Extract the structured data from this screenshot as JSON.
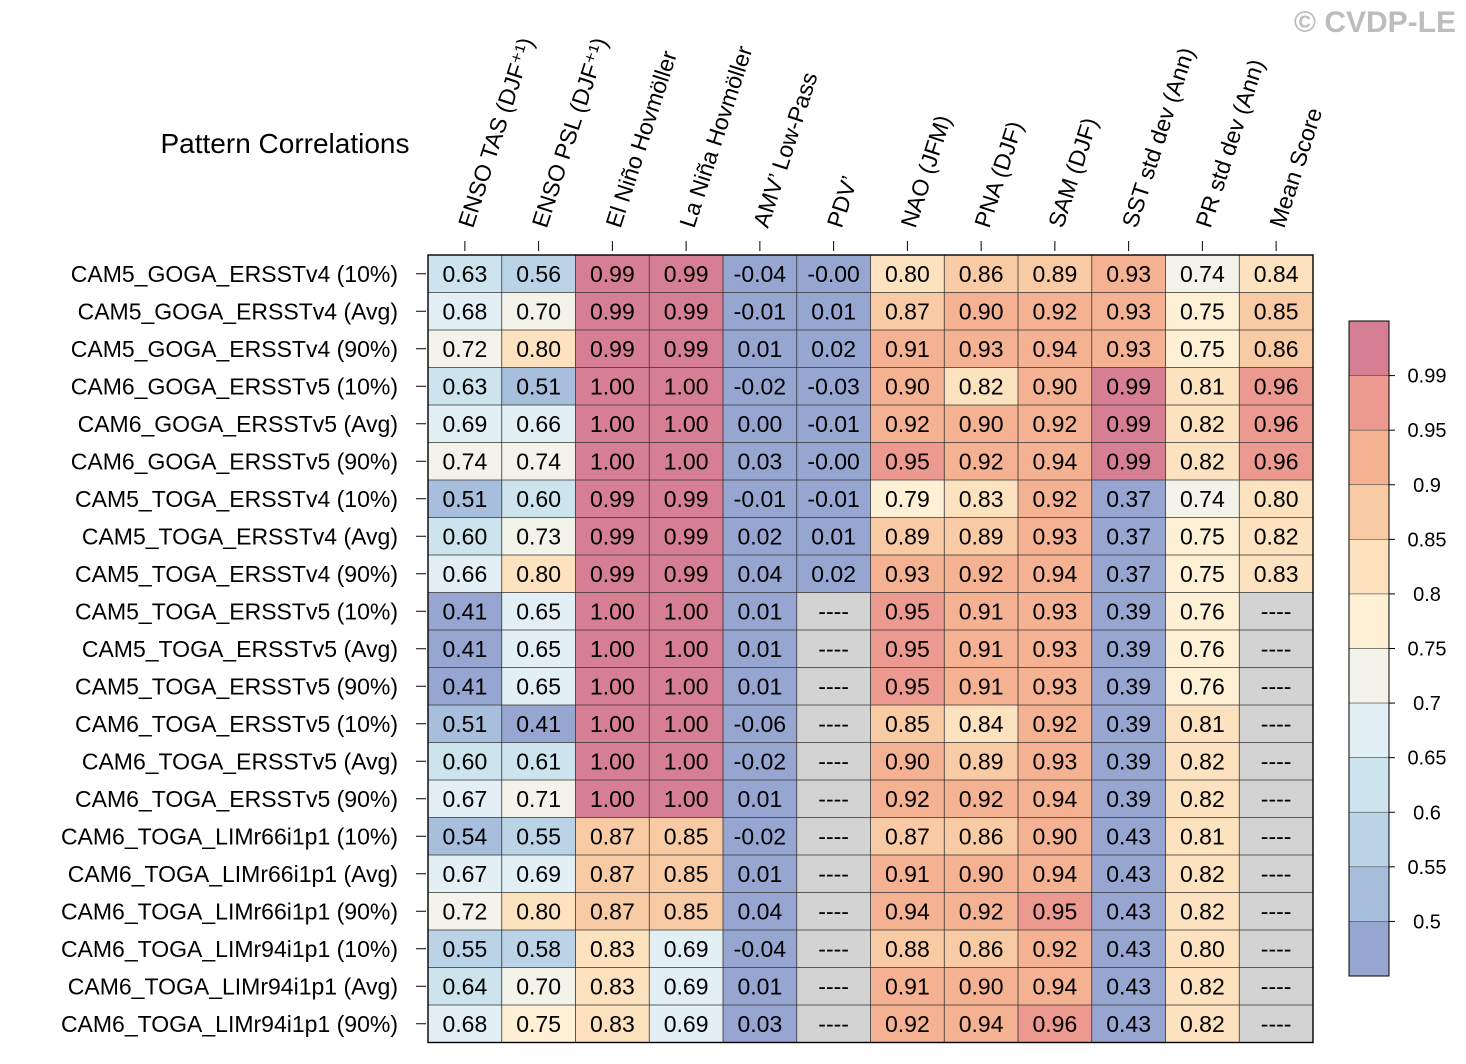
{
  "watermark": "© CVDP-LE",
  "chart_data": {
    "type": "heatmap",
    "title": "Pattern Correlations",
    "missing_label": "----",
    "columns": [
      "ENSO TAS (DJF⁺¹)",
      "ENSO PSL (DJF⁺¹)",
      "El Niño Hovmöller",
      "La Niña Hovmöller",
      "AMV’ Low-Pass",
      "PDV’",
      "NAO (JFM)",
      "PNA (DJF)",
      "SAM (DJF)",
      "SST std dev (Ann)",
      "PR std dev (Ann)",
      "Mean Score"
    ],
    "rows": [
      {
        "label": "CAM5_GOGA_ERSSTv4 (10%)",
        "values": [
          0.63,
          0.56,
          0.99,
          0.99,
          -0.04,
          -0.0,
          0.8,
          0.86,
          0.89,
          0.93,
          0.74,
          0.84
        ]
      },
      {
        "label": "CAM5_GOGA_ERSSTv4 (Avg)",
        "values": [
          0.68,
          0.7,
          0.99,
          0.99,
          -0.01,
          0.01,
          0.87,
          0.9,
          0.92,
          0.93,
          0.75,
          0.85
        ]
      },
      {
        "label": "CAM5_GOGA_ERSSTv4 (90%)",
        "values": [
          0.72,
          0.8,
          0.99,
          0.99,
          0.01,
          0.02,
          0.91,
          0.93,
          0.94,
          0.93,
          0.75,
          0.86
        ]
      },
      {
        "label": "CAM6_GOGA_ERSSTv5 (10%)",
        "values": [
          0.63,
          0.51,
          1.0,
          1.0,
          -0.02,
          -0.03,
          0.9,
          0.82,
          0.9,
          0.99,
          0.81,
          0.96
        ]
      },
      {
        "label": "CAM6_GOGA_ERSSTv5 (Avg)",
        "values": [
          0.69,
          0.66,
          1.0,
          1.0,
          0.0,
          -0.01,
          0.92,
          0.9,
          0.92,
          0.99,
          0.82,
          0.96
        ]
      },
      {
        "label": "CAM6_GOGA_ERSSTv5 (90%)",
        "values": [
          0.74,
          0.74,
          1.0,
          1.0,
          0.03,
          -0.0,
          0.95,
          0.92,
          0.94,
          0.99,
          0.82,
          0.96
        ]
      },
      {
        "label": "CAM5_TOGA_ERSSTv4 (10%)",
        "values": [
          0.51,
          0.6,
          0.99,
          0.99,
          -0.01,
          -0.01,
          0.79,
          0.83,
          0.92,
          0.37,
          0.74,
          0.8
        ]
      },
      {
        "label": "CAM5_TOGA_ERSSTv4 (Avg)",
        "values": [
          0.6,
          0.73,
          0.99,
          0.99,
          0.02,
          0.01,
          0.89,
          0.89,
          0.93,
          0.37,
          0.75,
          0.82
        ]
      },
      {
        "label": "CAM5_TOGA_ERSSTv4 (90%)",
        "values": [
          0.66,
          0.8,
          0.99,
          0.99,
          0.04,
          0.02,
          0.93,
          0.92,
          0.94,
          0.37,
          0.75,
          0.83
        ]
      },
      {
        "label": "CAM5_TOGA_ERSSTv5 (10%)",
        "values": [
          0.41,
          0.65,
          1.0,
          1.0,
          0.01,
          null,
          0.95,
          0.91,
          0.93,
          0.39,
          0.76,
          null
        ]
      },
      {
        "label": "CAM5_TOGA_ERSSTv5 (Avg)",
        "values": [
          0.41,
          0.65,
          1.0,
          1.0,
          0.01,
          null,
          0.95,
          0.91,
          0.93,
          0.39,
          0.76,
          null
        ]
      },
      {
        "label": "CAM5_TOGA_ERSSTv5 (90%)",
        "values": [
          0.41,
          0.65,
          1.0,
          1.0,
          0.01,
          null,
          0.95,
          0.91,
          0.93,
          0.39,
          0.76,
          null
        ]
      },
      {
        "label": "CAM6_TOGA_ERSSTv5 (10%)",
        "values": [
          0.51,
          0.41,
          1.0,
          1.0,
          -0.06,
          null,
          0.85,
          0.84,
          0.92,
          0.39,
          0.81,
          null
        ]
      },
      {
        "label": "CAM6_TOGA_ERSSTv5 (Avg)",
        "values": [
          0.6,
          0.61,
          1.0,
          1.0,
          -0.02,
          null,
          0.9,
          0.89,
          0.93,
          0.39,
          0.82,
          null
        ]
      },
      {
        "label": "CAM6_TOGA_ERSSTv5 (90%)",
        "values": [
          0.67,
          0.71,
          1.0,
          1.0,
          0.01,
          null,
          0.92,
          0.92,
          0.94,
          0.39,
          0.82,
          null
        ]
      },
      {
        "label": "CAM6_TOGA_LIMr66i1p1 (10%)",
        "values": [
          0.54,
          0.55,
          0.87,
          0.85,
          -0.02,
          null,
          0.87,
          0.86,
          0.9,
          0.43,
          0.81,
          null
        ]
      },
      {
        "label": "CAM6_TOGA_LIMr66i1p1 (Avg)",
        "values": [
          0.67,
          0.69,
          0.87,
          0.85,
          0.01,
          null,
          0.91,
          0.9,
          0.94,
          0.43,
          0.82,
          null
        ]
      },
      {
        "label": "CAM6_TOGA_LIMr66i1p1 (90%)",
        "values": [
          0.72,
          0.8,
          0.87,
          0.85,
          0.04,
          null,
          0.94,
          0.92,
          0.95,
          0.43,
          0.82,
          null
        ]
      },
      {
        "label": "CAM6_TOGA_LIMr94i1p1 (10%)",
        "values": [
          0.55,
          0.58,
          0.83,
          0.69,
          -0.04,
          null,
          0.88,
          0.86,
          0.92,
          0.43,
          0.8,
          null
        ]
      },
      {
        "label": "CAM6_TOGA_LIMr94i1p1 (Avg)",
        "values": [
          0.64,
          0.7,
          0.83,
          0.69,
          0.01,
          null,
          0.91,
          0.9,
          0.94,
          0.43,
          0.82,
          null
        ]
      },
      {
        "label": "CAM6_TOGA_LIMr94i1p1 (90%)",
        "values": [
          0.68,
          0.75,
          0.83,
          0.69,
          0.03,
          null,
          0.92,
          0.94,
          0.96,
          0.43,
          0.82,
          null
        ]
      }
    ],
    "colorbar": {
      "levels": [
        0.5,
        0.55,
        0.6,
        0.65,
        0.7,
        0.75,
        0.8,
        0.85,
        0.9,
        0.95,
        0.99
      ],
      "tick_labels": [
        "0.5",
        "0.55",
        "0.6",
        "0.65",
        "0.7",
        "0.75",
        "0.8",
        "0.85",
        "0.9",
        "0.95",
        "0.99"
      ],
      "colors": [
        "#97a6d1",
        "#a8bedd",
        "#bad3e6",
        "#cde3ee",
        "#e2eff4",
        "#f3f3e9",
        "#fdf0d4",
        "#fce2bf",
        "#f9cba5",
        "#f4b293",
        "#ec9a8f",
        "#d67f92"
      ],
      "missing_color": "#d3d3d3"
    }
  }
}
